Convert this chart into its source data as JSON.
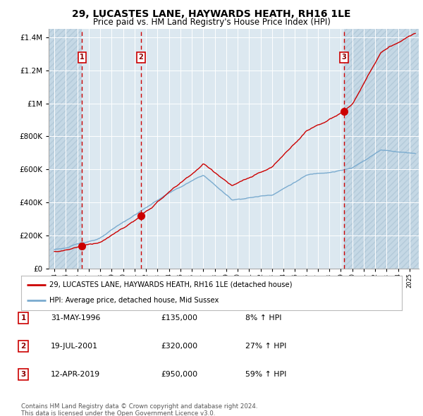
{
  "title": "29, LUCASTES LANE, HAYWARDS HEATH, RH16 1LE",
  "subtitle": "Price paid vs. HM Land Registry's House Price Index (HPI)",
  "title_fontsize": 10,
  "subtitle_fontsize": 8.5,
  "sale_color": "#cc0000",
  "hpi_color": "#7aabcf",
  "background_color": "#ffffff",
  "plot_bg_color": "#dce8f0",
  "grid_color": "#ffffff",
  "sales": [
    {
      "date_num": 1996.42,
      "price": 135000,
      "label": "1"
    },
    {
      "date_num": 2001.55,
      "price": 320000,
      "label": "2"
    },
    {
      "date_num": 2019.28,
      "price": 950000,
      "label": "3"
    }
  ],
  "sale_labels": [
    {
      "num": "1",
      "date": "31-MAY-1996",
      "price": "£135,000",
      "pct": "8% ↑ HPI"
    },
    {
      "num": "2",
      "date": "19-JUL-2001",
      "price": "£320,000",
      "pct": "27% ↑ HPI"
    },
    {
      "num": "3",
      "date": "12-APR-2019",
      "price": "£950,000",
      "pct": "59% ↑ HPI"
    }
  ],
  "legend_sale_label": "29, LUCASTES LANE, HAYWARDS HEATH, RH16 1LE (detached house)",
  "legend_hpi_label": "HPI: Average price, detached house, Mid Sussex",
  "footer1": "Contains HM Land Registry data © Crown copyright and database right 2024.",
  "footer2": "This data is licensed under the Open Government Licence v3.0.",
  "ylim": [
    0,
    1450000
  ],
  "xlim_start": 1993.5,
  "xlim_end": 2025.8
}
